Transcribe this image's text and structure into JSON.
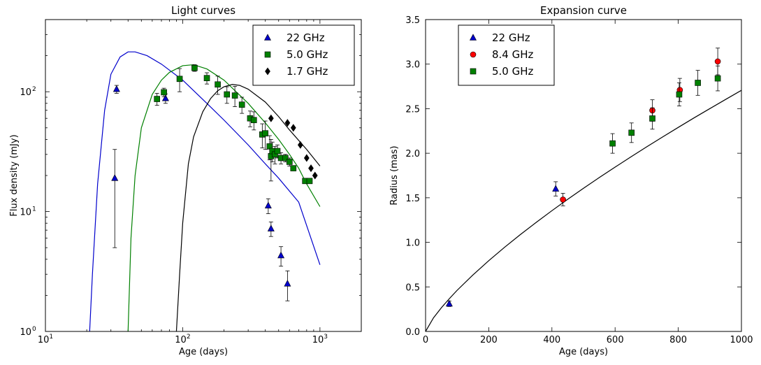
{
  "chart_data": [
    {
      "type": "scatter",
      "title": "Light curves",
      "xlabel": "Age (days)",
      "ylabel": "Flux density (mJy)",
      "xscale": "log",
      "yscale": "log",
      "xlim": [
        10,
        2000
      ],
      "ylim": [
        1,
        400
      ],
      "x_ticks": [
        {
          "value": 10,
          "label": "10",
          "exp": "1"
        },
        {
          "value": 100,
          "label": "10",
          "exp": "2"
        },
        {
          "value": 1000,
          "label": "10",
          "exp": "3"
        }
      ],
      "y_ticks": [
        {
          "value": 1,
          "label": "10",
          "exp": "0"
        },
        {
          "value": 10,
          "label": "10",
          "exp": "1"
        },
        {
          "value": 100,
          "label": "10",
          "exp": "2"
        }
      ],
      "legend_position": "top-right",
      "series": [
        {
          "name": "22 GHz",
          "marker": "triangle",
          "color": "#0000cc",
          "points": [
            {
              "x": 33,
              "y": 105,
              "err": 8
            },
            {
              "x": 32,
              "y": 19,
              "err": 14
            },
            {
              "x": 75,
              "y": 88,
              "err": 8
            },
            {
              "x": 420,
              "y": 11.2,
              "err": 1.6
            },
            {
              "x": 440,
              "y": 7.2,
              "err": 1.0
            },
            {
              "x": 520,
              "y": 4.3,
              "err": 0.8
            },
            {
              "x": 580,
              "y": 2.5,
              "err": 0.7
            }
          ],
          "model": [
            [
              21,
              1
            ],
            [
              22,
              3
            ],
            [
              24,
              17
            ],
            [
              27,
              70
            ],
            [
              30,
              140
            ],
            [
              35,
              195
            ],
            [
              40,
              215
            ],
            [
              45,
              215
            ],
            [
              55,
              200
            ],
            [
              70,
              170
            ],
            [
              100,
              125
            ],
            [
              150,
              80
            ],
            [
              200,
              58
            ],
            [
              300,
              36
            ],
            [
              400,
              25
            ],
            [
              500,
              19
            ],
            [
              700,
              12
            ],
            [
              1000,
              3.6
            ]
          ]
        },
        {
          "name": "5.0 GHz",
          "marker": "square",
          "color": "#008000",
          "points": [
            {
              "x": 65,
              "y": 87,
              "err": 10
            },
            {
              "x": 73,
              "y": 99,
              "err": 8
            },
            {
              "x": 95,
              "y": 128,
              "err": 28
            },
            {
              "x": 122,
              "y": 158,
              "err": 10
            },
            {
              "x": 150,
              "y": 130,
              "err": 14
            },
            {
              "x": 180,
              "y": 115,
              "err": 20
            },
            {
              "x": 210,
              "y": 95,
              "err": 15
            },
            {
              "x": 240,
              "y": 93,
              "err": 18
            },
            {
              "x": 270,
              "y": 78,
              "err": 12
            },
            {
              "x": 310,
              "y": 60,
              "err": 9
            },
            {
              "x": 330,
              "y": 58,
              "err": 10
            },
            {
              "x": 380,
              "y": 44,
              "err": 10
            },
            {
              "x": 400,
              "y": 45,
              "err": 12
            },
            {
              "x": 430,
              "y": 35,
              "err": 8
            },
            {
              "x": 440,
              "y": 29,
              "err": 11
            },
            {
              "x": 450,
              "y": 32,
              "err": 6
            },
            {
              "x": 470,
              "y": 30,
              "err": 5
            },
            {
              "x": 490,
              "y": 32,
              "err": 4
            },
            {
              "x": 520,
              "y": 28,
              "err": 3
            },
            {
              "x": 560,
              "y": 28,
              "err": 2
            },
            {
              "x": 600,
              "y": 26,
              "err": 2
            },
            {
              "x": 640,
              "y": 23,
              "err": 1
            },
            {
              "x": 780,
              "y": 18,
              "err": 0.8
            },
            {
              "x": 840,
              "y": 18,
              "err": 0.8
            }
          ],
          "model": [
            [
              40,
              1
            ],
            [
              42,
              6
            ],
            [
              45,
              20
            ],
            [
              50,
              50
            ],
            [
              60,
              95
            ],
            [
              70,
              125
            ],
            [
              80,
              145
            ],
            [
              100,
              165
            ],
            [
              120,
              168
            ],
            [
              150,
              155
            ],
            [
              200,
              125
            ],
            [
              300,
              80
            ],
            [
              400,
              55
            ],
            [
              500,
              40
            ],
            [
              600,
              30
            ],
            [
              700,
              23
            ],
            [
              800,
              17
            ],
            [
              1000,
              11
            ]
          ]
        },
        {
          "name": "1.7 GHz",
          "marker": "diamond",
          "color": "#000000",
          "points": [
            {
              "x": 440,
              "y": 60
            },
            {
              "x": 580,
              "y": 55
            },
            {
              "x": 640,
              "y": 50
            },
            {
              "x": 720,
              "y": 36
            },
            {
              "x": 800,
              "y": 28
            },
            {
              "x": 860,
              "y": 23
            },
            {
              "x": 920,
              "y": 20
            }
          ],
          "model": [
            [
              90,
              1
            ],
            [
              95,
              3
            ],
            [
              100,
              8
            ],
            [
              110,
              25
            ],
            [
              120,
              42
            ],
            [
              140,
              68
            ],
            [
              160,
              88
            ],
            [
              180,
              102
            ],
            [
              200,
              110
            ],
            [
              230,
              115
            ],
            [
              260,
              113
            ],
            [
              300,
              105
            ],
            [
              400,
              82
            ],
            [
              500,
              62
            ],
            [
              600,
              48
            ],
            [
              800,
              33
            ],
            [
              1000,
              24
            ]
          ]
        }
      ]
    },
    {
      "type": "scatter",
      "title": "Expansion curve",
      "xlabel": "Age (days)",
      "ylabel": "Radius (mas)",
      "xlim": [
        0,
        1000
      ],
      "ylim": [
        0.0,
        3.5
      ],
      "x_ticks": [
        {
          "value": 0,
          "label": "0"
        },
        {
          "value": 200,
          "label": "200"
        },
        {
          "value": 400,
          "label": "400"
        },
        {
          "value": 600,
          "label": "600"
        },
        {
          "value": 800,
          "label": "800"
        },
        {
          "value": 1000,
          "label": "1000"
        }
      ],
      "y_ticks": [
        {
          "value": 0.0,
          "label": "0.0"
        },
        {
          "value": 0.5,
          "label": "0.5"
        },
        {
          "value": 1.0,
          "label": "1.0"
        },
        {
          "value": 1.5,
          "label": "1.5"
        },
        {
          "value": 2.0,
          "label": "2.0"
        },
        {
          "value": 2.5,
          "label": "2.5"
        },
        {
          "value": 3.0,
          "label": "3.0"
        },
        {
          "value": 3.5,
          "label": "3.5"
        }
      ],
      "legend_position": "top-left",
      "series": [
        {
          "name": "22 GHz",
          "marker": "triangle",
          "color": "#0000cc",
          "points": [
            {
              "x": 75,
              "y": 0.31,
              "err": 0.03
            },
            {
              "x": 412,
              "y": 1.6,
              "err": 0.08
            }
          ]
        },
        {
          "name": "8.4 GHz",
          "marker": "circle",
          "color": "#ff0000",
          "points": [
            {
              "x": 435,
              "y": 1.48,
              "err": 0.07
            },
            {
              "x": 718,
              "y": 2.48,
              "err": 0.12
            },
            {
              "x": 805,
              "y": 2.71,
              "err": 0.13
            },
            {
              "x": 925,
              "y": 3.03,
              "err": 0.15
            }
          ]
        },
        {
          "name": "5.0 GHz",
          "marker": "square",
          "color": "#008000",
          "points": [
            {
              "x": 592,
              "y": 2.11,
              "err": 0.11
            },
            {
              "x": 652,
              "y": 2.23,
              "err": 0.11
            },
            {
              "x": 718,
              "y": 2.39,
              "err": 0.12
            },
            {
              "x": 803,
              "y": 2.66,
              "err": 0.13
            },
            {
              "x": 862,
              "y": 2.79,
              "err": 0.14
            },
            {
              "x": 925,
              "y": 2.84,
              "err": 0.14
            }
          ]
        }
      ],
      "model": [
        [
          0,
          0
        ],
        [
          25,
          0.152
        ],
        [
          50,
          0.266
        ],
        [
          75,
          0.367
        ],
        [
          100,
          0.462
        ],
        [
          150,
          0.634
        ],
        [
          200,
          0.794
        ],
        [
          250,
          0.944
        ],
        [
          300,
          1.087
        ],
        [
          350,
          1.223
        ],
        [
          400,
          1.355
        ],
        [
          450,
          1.483
        ],
        [
          500,
          1.607
        ],
        [
          550,
          1.727
        ],
        [
          600,
          1.844
        ],
        [
          650,
          1.959
        ],
        [
          700,
          2.072
        ],
        [
          750,
          2.182
        ],
        [
          800,
          2.29
        ],
        [
          850,
          2.397
        ],
        [
          900,
          2.501
        ],
        [
          950,
          2.604
        ],
        [
          1000,
          2.706
        ]
      ]
    }
  ]
}
